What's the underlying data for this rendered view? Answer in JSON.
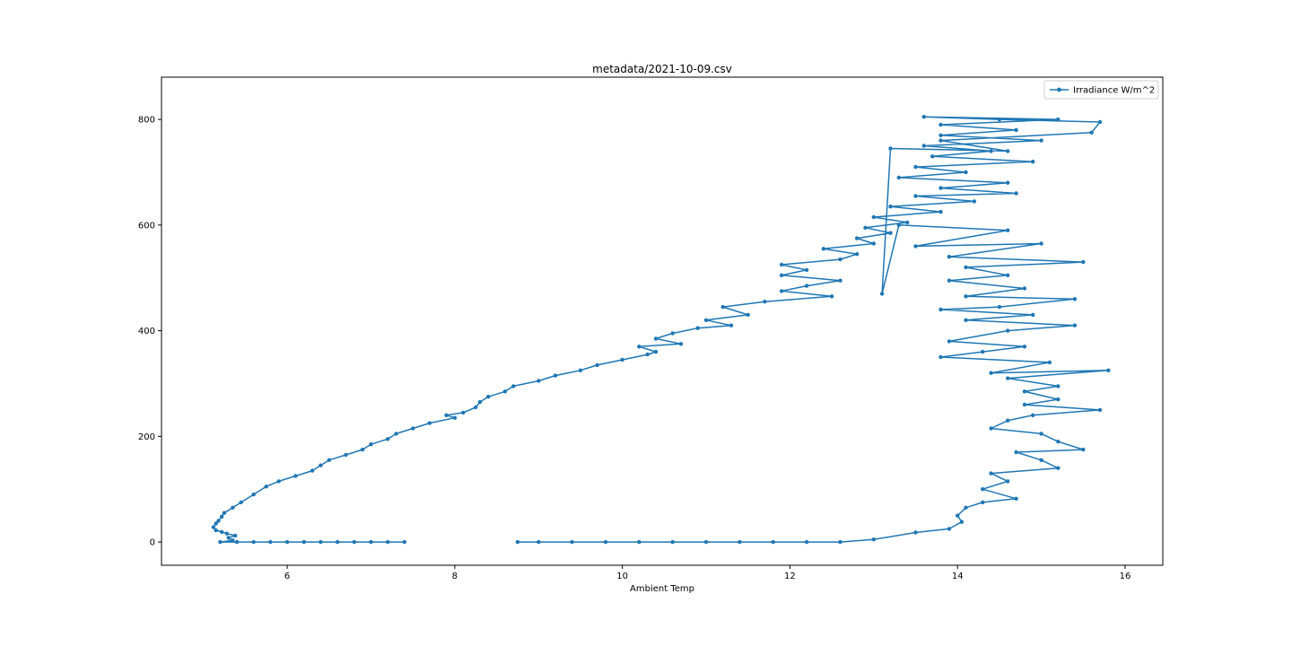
{
  "chart_data": {
    "type": "line",
    "title": "metadata/2021-10-09.csv",
    "xlabel": "Ambient Temp",
    "ylabel": "",
    "xlim": [
      4.5,
      16.45
    ],
    "ylim": [
      -44,
      880
    ],
    "xticks": [
      6,
      8,
      10,
      12,
      14,
      16
    ],
    "yticks": [
      0,
      200,
      400,
      600,
      800
    ],
    "grid": false,
    "legend_position": "top-right",
    "color": "#1f77b4",
    "marker": "dot",
    "series": [
      {
        "name": "Irradiance W/m^2",
        "points": [
          [
            7.4,
            0
          ],
          [
            7.2,
            0
          ],
          [
            7.0,
            0
          ],
          [
            6.8,
            0
          ],
          [
            6.6,
            0
          ],
          [
            6.4,
            0
          ],
          [
            6.2,
            0
          ],
          [
            6.0,
            0
          ],
          [
            5.8,
            0
          ],
          [
            5.6,
            0
          ],
          [
            5.4,
            0
          ],
          [
            5.2,
            0
          ],
          [
            5.35,
            3
          ],
          [
            5.3,
            8
          ],
          [
            5.38,
            12
          ],
          [
            5.28,
            16
          ],
          [
            5.22,
            19
          ],
          [
            5.15,
            22
          ],
          [
            5.12,
            28
          ],
          [
            5.15,
            35
          ],
          [
            5.18,
            40
          ],
          [
            5.22,
            48
          ],
          [
            5.25,
            55
          ],
          [
            5.35,
            65
          ],
          [
            5.45,
            75
          ],
          [
            5.6,
            90
          ],
          [
            5.75,
            105
          ],
          [
            5.9,
            115
          ],
          [
            6.1,
            125
          ],
          [
            6.3,
            135
          ],
          [
            6.4,
            145
          ],
          [
            6.5,
            155
          ],
          [
            6.7,
            165
          ],
          [
            6.9,
            175
          ],
          [
            7.0,
            185
          ],
          [
            7.2,
            195
          ],
          [
            7.3,
            205
          ],
          [
            7.5,
            215
          ],
          [
            7.7,
            225
          ],
          [
            8.0,
            235
          ],
          [
            7.9,
            240
          ],
          [
            8.1,
            245
          ],
          [
            8.25,
            255
          ],
          [
            8.3,
            265
          ],
          [
            8.4,
            275
          ],
          [
            8.6,
            285
          ],
          [
            8.7,
            295
          ],
          [
            9.0,
            305
          ],
          [
            9.2,
            315
          ],
          [
            9.5,
            325
          ],
          [
            9.7,
            335
          ],
          [
            10.0,
            345
          ],
          [
            10.3,
            355
          ],
          [
            10.4,
            360
          ],
          [
            10.2,
            370
          ],
          [
            10.7,
            375
          ],
          [
            10.4,
            385
          ],
          [
            10.6,
            395
          ],
          [
            10.9,
            405
          ],
          [
            11.3,
            410
          ],
          [
            11.0,
            420
          ],
          [
            11.5,
            430
          ],
          [
            11.2,
            445
          ],
          [
            11.7,
            455
          ],
          [
            12.5,
            465
          ],
          [
            11.9,
            475
          ],
          [
            12.2,
            485
          ],
          [
            12.6,
            495
          ],
          [
            11.9,
            505
          ],
          [
            12.2,
            515
          ],
          [
            11.9,
            525
          ],
          [
            12.6,
            535
          ],
          [
            12.8,
            545
          ],
          [
            12.4,
            555
          ],
          [
            13.0,
            565
          ],
          [
            12.8,
            575
          ],
          [
            13.2,
            585
          ],
          [
            12.9,
            595
          ],
          [
            13.4,
            605
          ],
          [
            13.0,
            615
          ],
          [
            13.8,
            625
          ],
          [
            13.2,
            635
          ],
          [
            14.2,
            645
          ],
          [
            13.5,
            655
          ],
          [
            14.7,
            660
          ],
          [
            13.8,
            670
          ],
          [
            14.6,
            680
          ],
          [
            13.3,
            690
          ],
          [
            14.1,
            700
          ],
          [
            13.5,
            710
          ],
          [
            14.9,
            720
          ],
          [
            13.7,
            730
          ],
          [
            14.4,
            740
          ],
          [
            13.6,
            750
          ],
          [
            15.0,
            760
          ],
          [
            13.8,
            770
          ],
          [
            14.7,
            780
          ],
          [
            13.8,
            790
          ],
          [
            15.2,
            800
          ],
          [
            13.6,
            805
          ],
          [
            14.5,
            800
          ],
          [
            15.7,
            795
          ],
          [
            15.6,
            775
          ],
          [
            13.8,
            760
          ],
          [
            14.6,
            740
          ],
          [
            13.2,
            745
          ],
          [
            13.1,
            470
          ],
          [
            13.3,
            600
          ],
          [
            14.6,
            590
          ],
          [
            13.5,
            560
          ],
          [
            15.0,
            565
          ],
          [
            13.9,
            540
          ],
          [
            15.5,
            530
          ],
          [
            14.1,
            520
          ],
          [
            14.6,
            505
          ],
          [
            13.9,
            495
          ],
          [
            14.8,
            480
          ],
          [
            14.1,
            465
          ],
          [
            15.4,
            460
          ],
          [
            14.5,
            445
          ],
          [
            13.8,
            440
          ],
          [
            14.9,
            430
          ],
          [
            14.1,
            420
          ],
          [
            15.4,
            410
          ],
          [
            14.6,
            400
          ],
          [
            13.9,
            380
          ],
          [
            14.8,
            370
          ],
          [
            14.3,
            360
          ],
          [
            13.8,
            350
          ],
          [
            15.1,
            340
          ],
          [
            14.4,
            320
          ],
          [
            15.8,
            325
          ],
          [
            14.6,
            310
          ],
          [
            15.2,
            295
          ],
          [
            14.8,
            285
          ],
          [
            15.2,
            270
          ],
          [
            14.8,
            260
          ],
          [
            15.7,
            250
          ],
          [
            14.9,
            240
          ],
          [
            14.6,
            230
          ],
          [
            14.4,
            215
          ],
          [
            15.0,
            205
          ],
          [
            15.2,
            190
          ],
          [
            15.5,
            175
          ],
          [
            14.7,
            170
          ],
          [
            15.0,
            155
          ],
          [
            15.2,
            140
          ],
          [
            14.4,
            130
          ],
          [
            14.6,
            115
          ],
          [
            14.3,
            100
          ],
          [
            14.7,
            82
          ],
          [
            14.3,
            75
          ],
          [
            14.1,
            65
          ],
          [
            14.0,
            50
          ],
          [
            14.05,
            38
          ],
          [
            13.9,
            25
          ],
          [
            13.5,
            18
          ],
          [
            13.0,
            5
          ],
          [
            12.6,
            0
          ],
          [
            12.2,
            0
          ],
          [
            11.8,
            0
          ],
          [
            11.4,
            0
          ],
          [
            11.0,
            0
          ],
          [
            10.6,
            0
          ],
          [
            10.2,
            0
          ],
          [
            9.8,
            0
          ],
          [
            9.4,
            0
          ],
          [
            9.0,
            0
          ],
          [
            8.75,
            0
          ]
        ]
      }
    ]
  }
}
